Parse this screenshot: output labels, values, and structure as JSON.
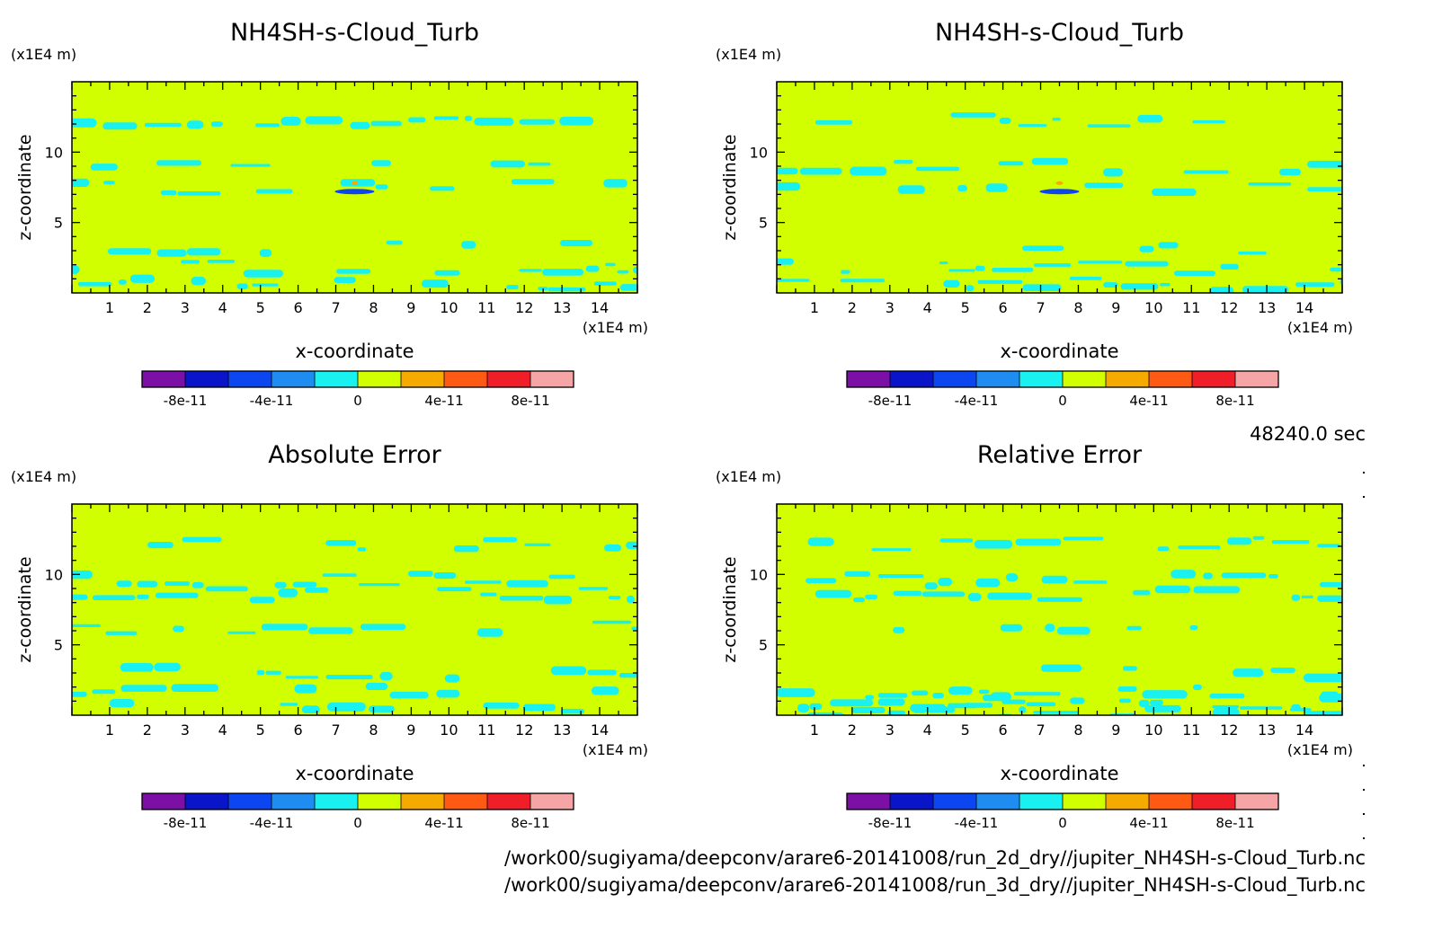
{
  "time_label": "48240.0 sec",
  "file_paths": [
    "/work00/sugiyama/deepconv/arare6-20141008/run_2d_dry//jupiter_NH4SH-s-Cloud_Turb.nc",
    "/work00/sugiyama/deepconv/arare6-20141008/run_3d_dry//jupiter_NH4SH-s-Cloud_Turb.nc"
  ],
  "colorbar": {
    "colors": [
      "#7b0fa6",
      "#0a14c8",
      "#0b46f0",
      "#1e8cf0",
      "#19f0f0",
      "#d2ff00",
      "#f5aa00",
      "#ff5a14",
      "#f01e28",
      "#f5a5a5"
    ],
    "tick_labels": [
      "-8e-11",
      "-4e-11",
      "0",
      "4e-11",
      "8e-11"
    ]
  },
  "chart_data": [
    {
      "type": "heatmap",
      "title": "NH4SH-s-Cloud_Turb",
      "xlabel": "x-coordinate",
      "ylabel": "z-coordinate",
      "xunit": "(x1E4 m)",
      "yunit": "(x1E4 m)",
      "xlim": [
        0,
        15
      ],
      "ylim": [
        0,
        15
      ],
      "xticks": [
        1,
        2,
        3,
        4,
        5,
        6,
        7,
        8,
        9,
        10,
        11,
        12,
        13,
        14
      ],
      "yticks": [
        5,
        10
      ],
      "background_level": "0 to 2e-11",
      "bands_z": [
        12.2,
        9.0,
        7.5,
        3.2,
        1.8,
        0.6
      ],
      "band_density": [
        0.55,
        0.5,
        0.5,
        0.4,
        0.65,
        0.7
      ],
      "features": [
        {
          "x": 7.5,
          "z": 7.2,
          "level": "-6e-11 to -4e-11"
        },
        {
          "x": 7.5,
          "z": 7.8,
          "level": "4e-11 to 6e-11"
        }
      ]
    },
    {
      "type": "heatmap",
      "title": "NH4SH-s-Cloud_Turb",
      "xlabel": "x-coordinate",
      "ylabel": "z-coordinate",
      "xunit": "(x1E4 m)",
      "yunit": "(x1E4 m)",
      "xlim": [
        0,
        15
      ],
      "ylim": [
        0,
        15
      ],
      "xticks": [
        1,
        2,
        3,
        4,
        5,
        6,
        7,
        8,
        9,
        10,
        11,
        12,
        13,
        14
      ],
      "yticks": [
        5,
        10
      ],
      "background_level": "0 to 2e-11",
      "bands_z": [
        12.2,
        9.0,
        7.5,
        3.2,
        1.8,
        0.6
      ],
      "band_density": [
        0.55,
        0.5,
        0.5,
        0.4,
        0.65,
        0.7
      ],
      "features": [
        {
          "x": 7.5,
          "z": 7.2,
          "level": "-6e-11 to -4e-11"
        },
        {
          "x": 7.5,
          "z": 7.8,
          "level": "4e-11 to 6e-11"
        }
      ]
    },
    {
      "type": "heatmap",
      "title": "Absolute Error",
      "xlabel": "x-coordinate",
      "ylabel": "z-coordinate",
      "xunit": "(x1E4 m)",
      "yunit": "(x1E4 m)",
      "xlim": [
        0,
        15
      ],
      "ylim": [
        0,
        15
      ],
      "xticks": [
        1,
        2,
        3,
        4,
        5,
        6,
        7,
        8,
        9,
        10,
        11,
        12,
        13,
        14
      ],
      "yticks": [
        5,
        10
      ],
      "background_level": "0 to 2e-11",
      "bands_z": [
        12.2,
        9.6,
        8.6,
        6.2,
        3.0,
        1.6,
        0.6
      ],
      "band_density": [
        0.45,
        0.75,
        0.7,
        0.3,
        0.4,
        0.6,
        0.55
      ],
      "features": []
    },
    {
      "type": "heatmap",
      "title": "Relative Error",
      "xlabel": "x-coordinate",
      "ylabel": "z-coordinate",
      "xunit": "(x1E4 m)",
      "yunit": "(x1E4 m)",
      "xlim": [
        0,
        15
      ],
      "ylim": [
        0,
        15
      ],
      "xticks": [
        1,
        2,
        3,
        4,
        5,
        6,
        7,
        8,
        9,
        10,
        11,
        12,
        13,
        14
      ],
      "yticks": [
        5,
        10
      ],
      "background_level": "0 to 2e-11",
      "bands_z": [
        12.2,
        9.6,
        8.6,
        6.2,
        3.0,
        1.6,
        0.8,
        0.3
      ],
      "band_density": [
        0.5,
        0.8,
        0.75,
        0.3,
        0.45,
        0.75,
        0.8,
        0.8
      ],
      "features": []
    }
  ]
}
